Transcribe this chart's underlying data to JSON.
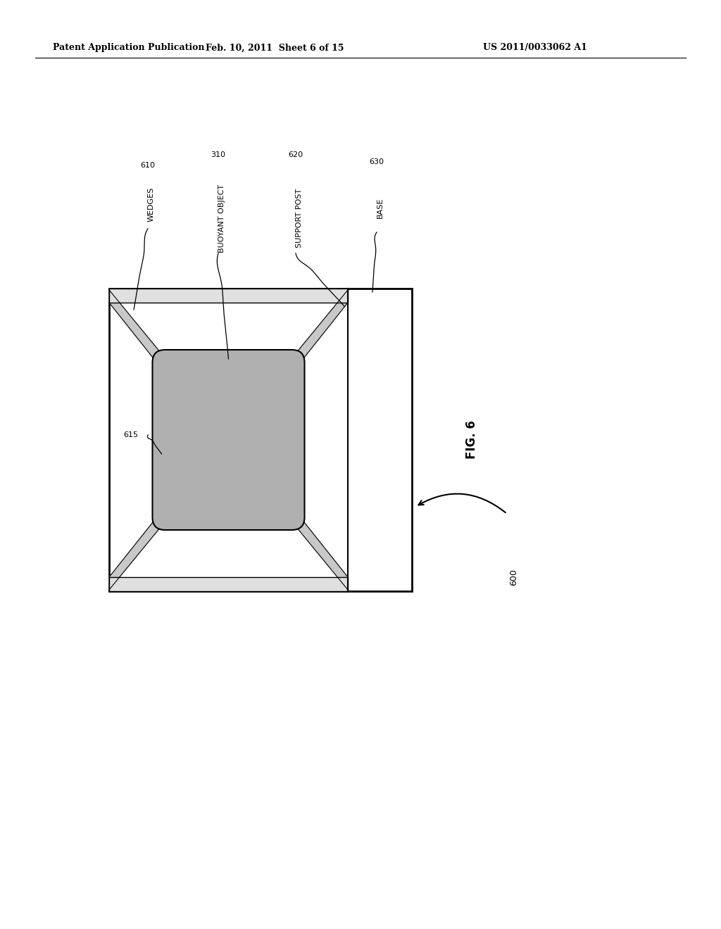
{
  "bg_color": "#ffffff",
  "header_left": "Patent Application Publication",
  "header_mid": "Feb. 10, 2011  Sheet 6 of 15",
  "header_right": "US 2011/0033062 A1",
  "wedge_color": "#c8c8c8",
  "bob_color": "#b0b0b0",
  "plate_color": "#e0e0e0"
}
